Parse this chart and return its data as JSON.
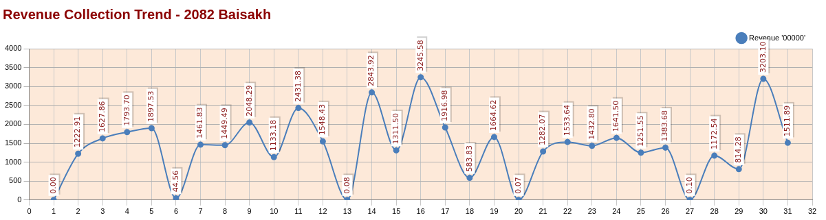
{
  "chart_data": {
    "type": "line",
    "title": "Revenue Collection Trend - 2082 Baisakh",
    "x": [
      1,
      2,
      3,
      4,
      5,
      6,
      7,
      8,
      9,
      10,
      11,
      12,
      13,
      14,
      15,
      16,
      17,
      18,
      19,
      20,
      21,
      22,
      23,
      24,
      25,
      26,
      27,
      28,
      29,
      30,
      31
    ],
    "series": [
      {
        "name": "Revenue '00000'",
        "color": "#4a7ebb",
        "values": [
          0,
          1222.91,
          1627.86,
          1793.7,
          1897.53,
          44.56,
          1461.83,
          1449.49,
          2048.29,
          1133.18,
          2431.38,
          1548.43,
          0.08,
          2843.92,
          1311.5,
          3245.58,
          1916.98,
          583.83,
          1664.62,
          0.07,
          1282.07,
          1533.64,
          1432.8,
          1641.5,
          1251.55,
          1383.68,
          0.1,
          1172.54,
          814.28,
          3203.1,
          1511.89
        ],
        "value_labels": [
          "0.00",
          "1222.91",
          "1627.86",
          "1793.70",
          "1897.53",
          "44.56",
          "1461.83",
          "1449.49",
          "2048.29",
          "1133.18",
          "2431.38",
          "1548.43",
          "0.08",
          "2843.92",
          "1311.50",
          "3245.58",
          "1916.98",
          "583.83",
          "1664.62",
          "0.07",
          "1282.07",
          "1533.64",
          "1432.80",
          "1641.50",
          "1251.55",
          "1383.68",
          "0.10",
          "1172.54",
          "814.28",
          "3203.10",
          "1511.89"
        ]
      }
    ],
    "xlim": [
      0,
      32
    ],
    "xticks": [
      0,
      1,
      2,
      3,
      4,
      5,
      6,
      7,
      8,
      9,
      10,
      11,
      12,
      13,
      14,
      15,
      16,
      17,
      18,
      19,
      20,
      21,
      22,
      23,
      24,
      25,
      26,
      27,
      28,
      29,
      30,
      31,
      32
    ],
    "ylim": [
      0,
      4000
    ],
    "yticks": [
      0,
      500,
      1000,
      1500,
      2000,
      2500,
      3000,
      3500,
      4000
    ],
    "grid": true,
    "legend": "top right",
    "marker": "circle",
    "line_style": "solid"
  }
}
